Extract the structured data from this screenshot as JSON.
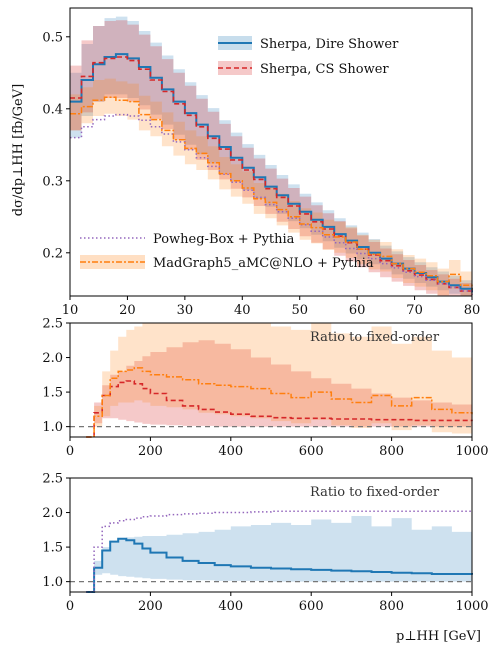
{
  "chart_data": [
    {
      "type": "line",
      "xlabel": "",
      "ylabel": "dσ/dp⊥HH [fb/GeV]",
      "xlim": [
        10,
        80
      ],
      "ylim": [
        0.14,
        0.54
      ],
      "xticks": [
        "10",
        "20",
        "30",
        "40",
        "50",
        "60",
        "70",
        "80"
      ],
      "yticks": [
        "0.2",
        "0.3",
        "0.4",
        "0.5"
      ],
      "xticks_values": [
        10,
        20,
        30,
        40,
        50,
        60,
        70,
        80
      ],
      "yticks_values": [
        0.2,
        0.3,
        0.4,
        0.5
      ],
      "legend_position": "top-right",
      "legend": [
        "Sherpa, Dire Shower",
        "Sherpa, CS Shower"
      ],
      "legend2_position": "bottom-left",
      "legend2": [
        "Powheg-Box + Pythia",
        "MadGraph5_aMC@NLO + Pythia"
      ],
      "x": [
        10,
        12,
        14,
        16,
        18,
        20,
        22,
        24,
        26,
        28,
        30,
        32,
        34,
        36,
        38,
        40,
        42,
        44,
        46,
        48,
        50,
        52,
        54,
        56,
        58,
        60,
        62,
        64,
        66,
        68,
        70,
        72,
        74,
        76,
        78,
        80
      ],
      "series": [
        {
          "name": "Sherpa, Dire Shower",
          "color": "#1f77b4",
          "values": [
            0.41,
            0.44,
            0.462,
            0.472,
            0.476,
            0.47,
            0.458,
            0.443,
            0.427,
            0.41,
            0.394,
            0.378,
            0.362,
            0.347,
            0.332,
            0.318,
            0.305,
            0.292,
            0.28,
            0.268,
            0.257,
            0.246,
            0.236,
            0.226,
            0.217,
            0.208,
            0.2,
            0.192,
            0.185,
            0.178,
            0.172,
            0.166,
            0.16,
            0.155,
            0.15,
            0.145
          ],
          "band_low": [
            0.36,
            0.39,
            0.41,
            0.42,
            0.42,
            0.415,
            0.405,
            0.392,
            0.378,
            0.364,
            0.35,
            0.337,
            0.324,
            0.311,
            0.299,
            0.287,
            0.275,
            0.264,
            0.254,
            0.244,
            0.234,
            0.225,
            0.216,
            0.207,
            0.199,
            0.191,
            0.184,
            0.177,
            0.17,
            0.164,
            0.158,
            0.153,
            0.148,
            0.143,
            0.138,
            0.134
          ],
          "band_high": [
            0.45,
            0.49,
            0.515,
            0.526,
            0.528,
            0.522,
            0.508,
            0.492,
            0.474,
            0.455,
            0.437,
            0.419,
            0.401,
            0.384,
            0.367,
            0.351,
            0.336,
            0.322,
            0.308,
            0.295,
            0.282,
            0.27,
            0.259,
            0.248,
            0.238,
            0.228,
            0.219,
            0.21,
            0.202,
            0.194,
            0.187,
            0.18,
            0.174,
            0.168,
            0.162,
            0.157
          ]
        },
        {
          "name": "Sherpa, CS Shower",
          "color": "#d62728",
          "values": [
            0.415,
            0.445,
            0.464,
            0.47,
            0.472,
            0.467,
            0.455,
            0.44,
            0.424,
            0.407,
            0.391,
            0.375,
            0.359,
            0.344,
            0.329,
            0.315,
            0.302,
            0.289,
            0.277,
            0.265,
            0.254,
            0.243,
            0.233,
            0.223,
            0.214,
            0.205,
            0.197,
            0.189,
            0.182,
            0.175,
            0.169,
            0.163,
            0.157,
            0.152,
            0.147,
            0.142
          ],
          "band_low": [
            0.37,
            0.395,
            0.41,
            0.415,
            0.415,
            0.41,
            0.399,
            0.386,
            0.372,
            0.357,
            0.343,
            0.329,
            0.315,
            0.302,
            0.289,
            0.277,
            0.265,
            0.254,
            0.243,
            0.233,
            0.223,
            0.214,
            0.205,
            0.196,
            0.188,
            0.18,
            0.173,
            0.166,
            0.16,
            0.154,
            0.148,
            0.143,
            0.138,
            0.134,
            0.13,
            0.126
          ],
          "band_high": [
            0.46,
            0.495,
            0.515,
            0.522,
            0.523,
            0.517,
            0.503,
            0.487,
            0.469,
            0.45,
            0.432,
            0.414,
            0.396,
            0.379,
            0.362,
            0.346,
            0.331,
            0.317,
            0.303,
            0.29,
            0.278,
            0.266,
            0.255,
            0.244,
            0.234,
            0.224,
            0.215,
            0.206,
            0.198,
            0.19,
            0.183,
            0.176,
            0.17,
            0.164,
            0.158,
            0.153
          ]
        },
        {
          "name": "Powheg-Box + Pythia",
          "color": "#9467bd",
          "values": [
            0.36,
            0.375,
            0.385,
            0.39,
            0.392,
            0.39,
            0.384,
            0.375,
            0.365,
            0.354,
            0.343,
            0.332,
            0.32,
            0.309,
            0.298,
            0.287,
            0.277,
            0.267,
            0.257,
            0.248,
            0.239,
            0.23,
            0.222,
            0.214,
            0.206,
            0.199,
            0.192,
            0.185,
            0.179,
            0.173,
            0.167,
            0.162,
            0.157,
            0.152,
            0.147,
            0.142
          ]
        },
        {
          "name": "MadGraph5_aMC@NLO + Pythia",
          "color": "#ff7f0e",
          "values": [
            0.393,
            0.403,
            0.412,
            0.416,
            0.412,
            0.41,
            0.392,
            0.385,
            0.37,
            0.357,
            0.345,
            0.338,
            0.325,
            0.31,
            0.3,
            0.29,
            0.275,
            0.27,
            0.26,
            0.25,
            0.24,
            0.235,
            0.225,
            0.222,
            0.215,
            0.205,
            0.198,
            0.195,
            0.185,
            0.178,
            0.173,
            0.168,
            0.16,
            0.17,
            0.155,
            0.148
          ],
          "band_low": [
            0.37,
            0.38,
            0.39,
            0.393,
            0.39,
            0.385,
            0.37,
            0.362,
            0.348,
            0.335,
            0.323,
            0.315,
            0.302,
            0.288,
            0.278,
            0.268,
            0.254,
            0.248,
            0.238,
            0.228,
            0.218,
            0.213,
            0.204,
            0.2,
            0.193,
            0.184,
            0.177,
            0.174,
            0.165,
            0.158,
            0.153,
            0.148,
            0.141,
            0.15,
            0.136,
            0.13
          ],
          "band_high": [
            0.42,
            0.43,
            0.44,
            0.442,
            0.438,
            0.435,
            0.418,
            0.41,
            0.395,
            0.382,
            0.37,
            0.362,
            0.348,
            0.333,
            0.323,
            0.313,
            0.297,
            0.292,
            0.282,
            0.272,
            0.262,
            0.256,
            0.246,
            0.243,
            0.236,
            0.225,
            0.218,
            0.215,
            0.205,
            0.197,
            0.192,
            0.187,
            0.178,
            0.19,
            0.174,
            0.166
          ]
        }
      ]
    },
    {
      "type": "line",
      "xlim": [
        0,
        1000
      ],
      "ylim": [
        0.85,
        2.5
      ],
      "xticks": [
        "0",
        "200",
        "400",
        "600",
        "800",
        "1000"
      ],
      "yticks": [
        "1.0",
        "1.5",
        "2.0",
        "2.5"
      ],
      "xticks_values": [
        0,
        200,
        400,
        600,
        800,
        1000
      ],
      "yticks_values": [
        1.0,
        1.5,
        2.0,
        2.5
      ],
      "reference_line": 1.0,
      "annotation": "Ratio to fixed-order",
      "x": [
        40,
        60,
        80,
        100,
        120,
        140,
        160,
        180,
        200,
        240,
        280,
        320,
        360,
        400,
        450,
        500,
        550,
        600,
        650,
        700,
        750,
        800,
        850,
        900,
        950,
        1000
      ],
      "series": [
        {
          "name": "Sherpa, CS Shower",
          "color": "#d62728",
          "values": [
            0.85,
            1.2,
            1.45,
            1.58,
            1.64,
            1.66,
            1.62,
            1.55,
            1.48,
            1.38,
            1.3,
            1.25,
            1.21,
            1.18,
            1.15,
            1.13,
            1.12,
            1.12,
            1.11,
            1.11,
            1.1,
            1.1,
            1.09,
            1.09,
            1.09,
            1.08
          ],
          "band_low": [
            0.85,
            1.05,
            1.12,
            1.12,
            1.1,
            1.08,
            1.06,
            1.04,
            1.03,
            1.02,
            1.01,
            1.01,
            1.0,
            1.0,
            1.0,
            1.0,
            1.0,
            1.0,
            1.0,
            1.0,
            1.0,
            1.0,
            1.0,
            1.0,
            1.0,
            1.0
          ],
          "band_high": [
            0.85,
            1.35,
            1.6,
            1.75,
            1.8,
            1.88,
            1.95,
            2.02,
            2.08,
            2.15,
            2.22,
            2.25,
            2.2,
            2.12,
            2.0,
            1.9,
            1.8,
            1.7,
            1.62,
            1.55,
            1.48,
            1.42,
            1.38,
            1.35,
            1.32,
            1.3
          ]
        },
        {
          "name": "MadGraph5_aMC@NLO + Pythia",
          "color": "#ff7f0e",
          "values": [
            0.85,
            1.15,
            1.45,
            1.7,
            1.8,
            1.82,
            1.85,
            1.8,
            1.75,
            1.72,
            1.68,
            1.62,
            1.6,
            1.58,
            1.55,
            1.48,
            1.42,
            1.5,
            1.4,
            1.35,
            1.45,
            1.3,
            1.42,
            1.25,
            1.2,
            1.18
          ],
          "band_low": [
            0.85,
            1.0,
            1.15,
            1.3,
            1.35,
            1.35,
            1.38,
            1.35,
            1.3,
            1.28,
            1.25,
            1.2,
            1.18,
            1.15,
            1.12,
            1.08,
            1.05,
            1.1,
            1.02,
            0.98,
            1.05,
            0.95,
            1.02,
            0.92,
            0.9,
            0.88
          ],
          "band_high": [
            0.85,
            1.3,
            1.8,
            2.1,
            2.3,
            2.4,
            2.45,
            2.5,
            2.5,
            2.5,
            2.5,
            2.5,
            2.5,
            2.5,
            2.5,
            2.45,
            2.4,
            2.5,
            2.35,
            2.3,
            2.45,
            2.2,
            2.3,
            2.1,
            2.0,
            1.95
          ]
        }
      ]
    },
    {
      "type": "line",
      "xlabel": "p⊥HH [GeV]",
      "xlim": [
        0,
        1000
      ],
      "ylim": [
        0.85,
        2.5
      ],
      "xticks": [
        "0",
        "200",
        "400",
        "600",
        "800",
        "1000"
      ],
      "yticks": [
        "1.0",
        "1.5",
        "2.0",
        "2.5"
      ],
      "xticks_values": [
        0,
        200,
        400,
        600,
        800,
        1000
      ],
      "yticks_values": [
        1.0,
        1.5,
        2.0,
        2.5
      ],
      "reference_line": 1.0,
      "annotation": "Ratio to fixed-order",
      "x": [
        40,
        60,
        80,
        100,
        120,
        140,
        160,
        180,
        200,
        240,
        280,
        320,
        360,
        400,
        450,
        500,
        550,
        600,
        650,
        700,
        750,
        800,
        850,
        900,
        950,
        1000
      ],
      "series": [
        {
          "name": "Sherpa, Dire Shower",
          "color": "#1f77b4",
          "values": [
            0.85,
            1.2,
            1.45,
            1.58,
            1.62,
            1.6,
            1.55,
            1.48,
            1.42,
            1.35,
            1.3,
            1.27,
            1.24,
            1.22,
            1.2,
            1.19,
            1.18,
            1.17,
            1.16,
            1.15,
            1.14,
            1.13,
            1.12,
            1.11,
            1.11,
            1.1
          ],
          "band_low": [
            0.85,
            1.1,
            1.12,
            1.1,
            1.08,
            1.07,
            1.06,
            1.05,
            1.04,
            1.03,
            1.02,
            1.02,
            1.01,
            1.01,
            1.01,
            1.0,
            1.0,
            1.0,
            1.0,
            1.0,
            1.0,
            1.0,
            1.0,
            1.0,
            1.0,
            1.0
          ],
          "band_high": [
            0.85,
            1.3,
            1.5,
            1.58,
            1.62,
            1.64,
            1.65,
            1.66,
            1.66,
            1.68,
            1.7,
            1.72,
            1.75,
            1.8,
            1.82,
            1.85,
            1.82,
            1.9,
            1.85,
            1.95,
            1.8,
            1.92,
            1.75,
            1.8,
            1.72,
            1.7
          ]
        },
        {
          "name": "Powheg-Box + Pythia",
          "color": "#9467bd",
          "values": [
            0.85,
            1.5,
            1.8,
            1.85,
            1.88,
            1.9,
            1.92,
            1.94,
            1.95,
            1.97,
            1.98,
            1.99,
            2.0,
            2.0,
            2.01,
            2.02,
            2.02,
            2.02,
            2.02,
            2.02,
            2.02,
            2.02,
            2.02,
            2.02,
            2.02,
            2.02
          ]
        }
      ]
    }
  ]
}
